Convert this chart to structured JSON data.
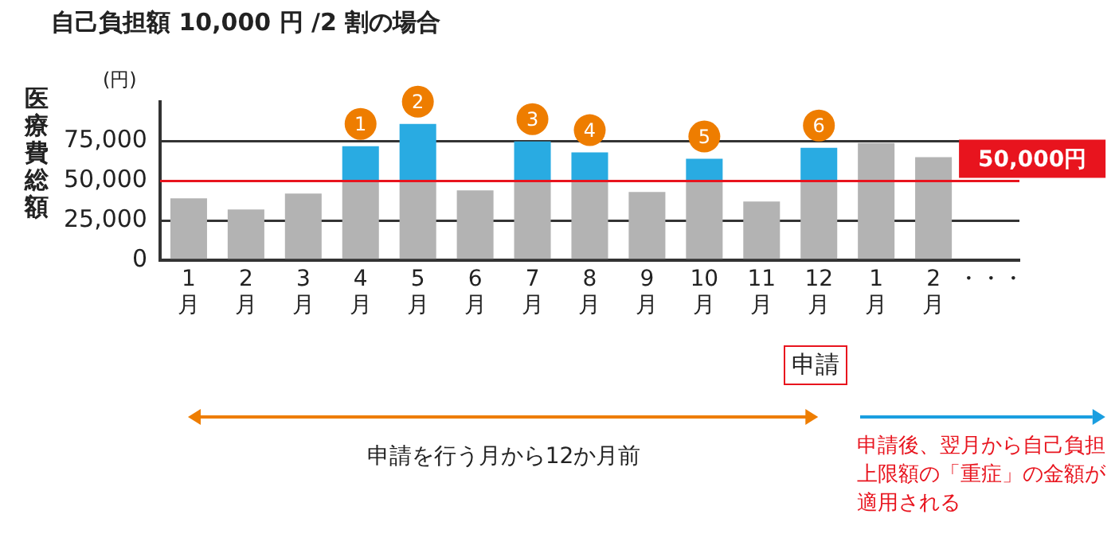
{
  "chart_data": {
    "type": "bar",
    "title": "自己負担額 10,000 円 /2 割の場合",
    "ylabel": "医療費総額",
    "categories": [
      "1\n月",
      "2\n月",
      "3\n月",
      "4\n月",
      "5\n月",
      "6\n月",
      "7\n月",
      "8\n月",
      "9\n月",
      "10\n月",
      "11\n月",
      "12\n月",
      "1\n月",
      "2\n月",
      "・・・"
    ],
    "stacked": true,
    "series": [
      {
        "color": "#b3b3b3",
        "values": [
          39000,
          32000,
          42000,
          50000,
          50000,
          44000,
          50000,
          50000,
          43000,
          50000,
          37000,
          50000,
          74000,
          65000,
          null
        ]
      },
      {
        "color": "#29abe2",
        "values": [
          null,
          null,
          null,
          22000,
          36000,
          null,
          25000,
          18000,
          null,
          14000,
          null,
          21000,
          null,
          null,
          null
        ]
      }
    ],
    "ylim": [
      0,
      100000
    ],
    "yticks": [
      0,
      {
        "value": 25000,
        "label": "25,000"
      },
      {
        "value": 50000,
        "label": "50,000"
      },
      {
        "value": 75000,
        "label": "75,000"
      }
    ],
    "grid": "y",
    "ref_lines": [
      {
        "axis": "y",
        "value": 50000,
        "label": "50,000円",
        "color": "#e8141e"
      }
    ],
    "annotations": [
      "(円)",
      {
        "text": "1",
        "x": "4\n月",
        "y": 72000
      },
      {
        "text": "2",
        "x": "5\n月",
        "y": 86000
      },
      {
        "text": "3",
        "x": "7\n月",
        "y": 75000
      },
      {
        "text": "4",
        "x": "8\n月",
        "y": 68000
      },
      {
        "text": "5",
        "x": "10\n月",
        "y": 64000
      },
      {
        "text": "6",
        "x": "12\n月",
        "y": 71000
      },
      "申請",
      "申請を行う月から12か月前",
      "申請後、翌月から自己負担上限額の「重症」の金額が適用される"
    ]
  }
}
